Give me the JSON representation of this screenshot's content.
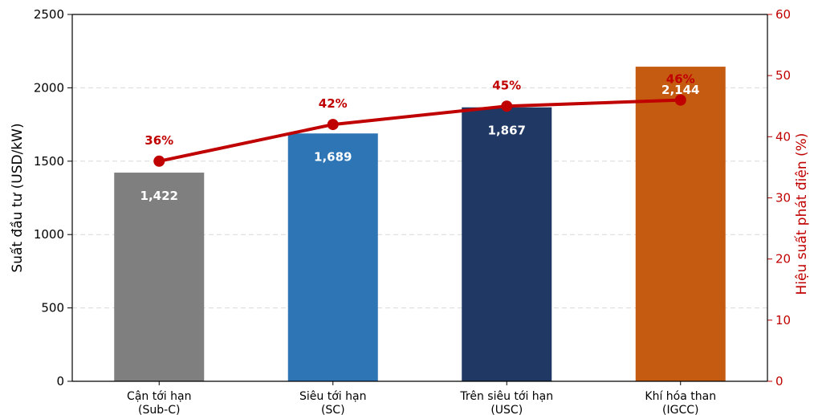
{
  "chart_data": {
    "type": "bar",
    "title": "",
    "categories": [
      "Cận tới hạn\n(Sub-C)",
      "Siêu tới hạn\n(SC)",
      "Trên siêu tới hạn\n(USC)",
      "Khí hóa than\n(IGCC)"
    ],
    "series": [
      {
        "axis": "left",
        "type": "bar",
        "values": [
          1422,
          1689,
          1867,
          2144
        ],
        "value_labels": [
          "1,422",
          "1,689",
          "1,867",
          "2,144"
        ],
        "colors": [
          "#7f7f7f",
          "#2e75b6",
          "#1f3864",
          "#c55a11"
        ]
      },
      {
        "axis": "right",
        "type": "line",
        "values": [
          36,
          42,
          45,
          46
        ],
        "value_labels": [
          "36%",
          "42%",
          "45%",
          "46%"
        ],
        "color": "#c00000"
      }
    ],
    "ylabel": "Suất đầu tư (USD/kW)",
    "ylim": [
      0,
      2500
    ],
    "yticks": [
      "0",
      "500",
      "1000",
      "1500",
      "2000",
      "2500"
    ],
    "y2label": "Hiệu suất phát điện (%)",
    "y2lim": [
      0,
      60
    ],
    "y2ticks": [
      "0",
      "10",
      "20",
      "30",
      "40",
      "50",
      "60"
    ],
    "grid": true,
    "right_axis_color": "#c00000"
  }
}
